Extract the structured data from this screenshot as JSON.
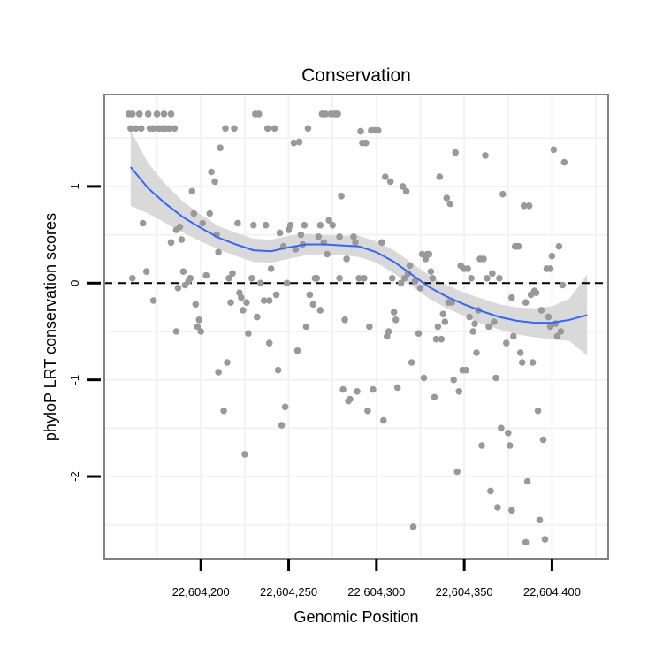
{
  "chart_data": {
    "type": "scatter",
    "title": "Conservation",
    "xlabel": "Genomic Position",
    "ylabel": "phyloP LRT conservation scores",
    "xlim": [
      22604145,
      22604432
    ],
    "ylim": [
      -2.85,
      1.95
    ],
    "x_ticks": [
      22604200,
      22604250,
      22604300,
      22604350,
      22604400
    ],
    "x_tick_labels": [
      "22,604,200",
      "22,604,250",
      "22,604,300",
      "22,604,350",
      "22,604,400"
    ],
    "y_ticks": [
      1,
      0,
      -1,
      -2
    ],
    "y_tick_labels": [
      "1",
      "0",
      "-1",
      "-2"
    ],
    "grid": true,
    "reference_line": {
      "y": 0,
      "style": "dashed"
    },
    "colors": {
      "points": "#999999",
      "smooth": "#3366ff",
      "ribbon": "#d9d9d9",
      "panel_border": "#808080",
      "grid": "#f2f2f2",
      "reference": "#000000"
    },
    "series": [
      {
        "values": [
          [
            22604159,
            1.75
          ],
          [
            22604160,
            1.6
          ],
          [
            22604161,
            1.75
          ],
          [
            22604161,
            0.05
          ],
          [
            22604163,
            1.6
          ],
          [
            22604165,
            1.75
          ],
          [
            22604166,
            1.6
          ],
          [
            22604167,
            0.62
          ],
          [
            22604169,
            0.12
          ],
          [
            22604170,
            1.75
          ],
          [
            22604171,
            1.6
          ],
          [
            22604173,
            1.6
          ],
          [
            22604173,
            -0.18
          ],
          [
            22604175,
            1.75
          ],
          [
            22604176,
            1.6
          ],
          [
            22604178,
            1.6
          ],
          [
            22604179,
            1.75
          ],
          [
            22604180,
            1.6
          ],
          [
            22604182,
            1.6
          ],
          [
            22604183,
            1.75
          ],
          [
            22604183,
            0.42
          ],
          [
            22604185,
            1.6
          ],
          [
            22604186,
            0.55
          ],
          [
            22604186,
            -0.5
          ],
          [
            22604187,
            -0.05
          ],
          [
            22604188,
            0.58
          ],
          [
            22604189,
            0.45
          ],
          [
            22604190,
            0.12
          ],
          [
            22604191,
            -0.02
          ],
          [
            22604193,
            0.02
          ],
          [
            22604194,
            0.05
          ],
          [
            22604195,
            0.95
          ],
          [
            22604196,
            0.72
          ],
          [
            22604197,
            -0.22
          ],
          [
            22604198,
            -0.45
          ],
          [
            22604199,
            -0.38
          ],
          [
            22604200,
            -0.5
          ],
          [
            22604201,
            0.62
          ],
          [
            22604203,
            0.08
          ],
          [
            22604205,
            0.72
          ],
          [
            22604206,
            1.15
          ],
          [
            22604208,
            1.05
          ],
          [
            22604209,
            0.5
          ],
          [
            22604210,
            -0.92
          ],
          [
            22604210,
            0.32
          ],
          [
            22604211,
            1.4
          ],
          [
            22604213,
            -1.32
          ],
          [
            22604214,
            1.6
          ],
          [
            22604215,
            -0.82
          ],
          [
            22604216,
            0.05
          ],
          [
            22604217,
            -0.2
          ],
          [
            22604218,
            0.1
          ],
          [
            22604219,
            1.6
          ],
          [
            22604221,
            0.62
          ],
          [
            22604222,
            -0.1
          ],
          [
            22604223,
            -0.15
          ],
          [
            22604224,
            -0.28
          ],
          [
            22604225,
            -1.77
          ],
          [
            22604226,
            -0.2
          ],
          [
            22604227,
            -0.52
          ],
          [
            22604229,
            0.05
          ],
          [
            22604230,
            0.6
          ],
          [
            22604231,
            1.75
          ],
          [
            22604232,
            -0.35
          ],
          [
            22604233,
            1.75
          ],
          [
            22604234,
            0.0
          ],
          [
            22604236,
            -0.18
          ],
          [
            22604237,
            0.6
          ],
          [
            22604238,
            1.6
          ],
          [
            22604239,
            -0.62
          ],
          [
            22604239,
            -0.18
          ],
          [
            22604240,
            0.15
          ],
          [
            22604242,
            1.6
          ],
          [
            22604243,
            -0.12
          ],
          [
            22604244,
            -0.9
          ],
          [
            22604245,
            0.52
          ],
          [
            22604246,
            -1.47
          ],
          [
            22604247,
            0.38
          ],
          [
            22604248,
            -1.28
          ],
          [
            22604249,
            0.0
          ],
          [
            22604250,
            0.55
          ],
          [
            22604251,
            0.6
          ],
          [
            22604253,
            1.45
          ],
          [
            22604254,
            0.35
          ],
          [
            22604255,
            -0.7
          ],
          [
            22604256,
            1.46
          ],
          [
            22604257,
            0.5
          ],
          [
            22604258,
            0.4
          ],
          [
            22604259,
            0.6
          ],
          [
            22604260,
            -0.45
          ],
          [
            22604261,
            1.6
          ],
          [
            22604262,
            -0.12
          ],
          [
            22604264,
            -0.22
          ],
          [
            22604265,
            0.05
          ],
          [
            22604266,
            0.05
          ],
          [
            22604267,
            0.48
          ],
          [
            22604268,
            0.6
          ],
          [
            22604268,
            -0.28
          ],
          [
            22604269,
            1.75
          ],
          [
            22604270,
            0.42
          ],
          [
            22604271,
            1.75
          ],
          [
            22604272,
            0.3
          ],
          [
            22604273,
            0.65
          ],
          [
            22604274,
            1.75
          ],
          [
            22604275,
            0.6
          ],
          [
            22604276,
            1.75
          ],
          [
            22604277,
            1.75
          ],
          [
            22604278,
            1.75
          ],
          [
            22604279,
            0.48
          ],
          [
            22604279,
            0.05
          ],
          [
            22604280,
            0.9
          ],
          [
            22604281,
            -1.1
          ],
          [
            22604282,
            -0.38
          ],
          [
            22604283,
            0.25
          ],
          [
            22604284,
            -1.22
          ],
          [
            22604285,
            -1.2
          ],
          [
            22604287,
            0.48
          ],
          [
            22604288,
            0.42
          ],
          [
            22604289,
            -1.12
          ],
          [
            22604290,
            0.05
          ],
          [
            22604291,
            1.57
          ],
          [
            22604292,
            1.45
          ],
          [
            22604293,
            0.05
          ],
          [
            22604294,
            1.45
          ],
          [
            22604295,
            -1.32
          ],
          [
            22604296,
            -0.45
          ],
          [
            22604297,
            1.58
          ],
          [
            22604298,
            -1.1
          ],
          [
            22604299,
            1.58
          ],
          [
            22604301,
            1.58
          ],
          [
            22604303,
            0.42
          ],
          [
            22604304,
            -1.42
          ],
          [
            22604305,
            1.1
          ],
          [
            22604306,
            -0.55
          ],
          [
            22604307,
            -0.5
          ],
          [
            22604308,
            1.05
          ],
          [
            22604309,
            0.05
          ],
          [
            22604310,
            -0.3
          ],
          [
            22604311,
            -0.38
          ],
          [
            22604312,
            -1.08
          ],
          [
            22604314,
            0.0
          ],
          [
            22604315,
            1.0
          ],
          [
            22604316,
            0.05
          ],
          [
            22604317,
            0.95
          ],
          [
            22604318,
            0.1
          ],
          [
            22604319,
            0.18
          ],
          [
            22604320,
            -0.82
          ],
          [
            22604321,
            -2.52
          ],
          [
            22604322,
            0.02
          ],
          [
            22604324,
            -0.52
          ],
          [
            22604325,
            -0.05
          ],
          [
            22604326,
            0.3
          ],
          [
            22604327,
            -0.98
          ],
          [
            22604328,
            0.25
          ],
          [
            22604329,
            0.3
          ],
          [
            22604330,
            0.3
          ],
          [
            22604331,
            0.12
          ],
          [
            22604332,
            0.05
          ],
          [
            22604333,
            -1.18
          ],
          [
            22604334,
            -0.58
          ],
          [
            22604335,
            -0.45
          ],
          [
            22604336,
            1.1
          ],
          [
            22604337,
            -0.58
          ],
          [
            22604338,
            -0.32
          ],
          [
            22604339,
            -0.4
          ],
          [
            22604340,
            0.88
          ],
          [
            22604341,
            -0.2
          ],
          [
            22604342,
            0.82
          ],
          [
            22604343,
            -0.2
          ],
          [
            22604344,
            -1.0
          ],
          [
            22604345,
            1.35
          ],
          [
            22604346,
            -1.95
          ],
          [
            22604347,
            -1.12
          ],
          [
            22604348,
            0.18
          ],
          [
            22604349,
            -0.9
          ],
          [
            22604350,
            0.15
          ],
          [
            22604351,
            -0.9
          ],
          [
            22604352,
            0.15
          ],
          [
            22604353,
            -0.35
          ],
          [
            22604354,
            0.05
          ],
          [
            22604355,
            -0.5
          ],
          [
            22604356,
            -0.42
          ],
          [
            22604357,
            -0.72
          ],
          [
            22604358,
            -0.28
          ],
          [
            22604359,
            0.25
          ],
          [
            22604360,
            -1.68
          ],
          [
            22604361,
            0.25
          ],
          [
            22604362,
            1.32
          ],
          [
            22604363,
            0.05
          ],
          [
            22604364,
            -0.45
          ],
          [
            22604365,
            -2.15
          ],
          [
            22604366,
            0.1
          ],
          [
            22604367,
            -0.4
          ],
          [
            22604368,
            -0.98
          ],
          [
            22604369,
            -2.32
          ],
          [
            22604370,
            0.05
          ],
          [
            22604371,
            -1.5
          ],
          [
            22604372,
            0.92
          ],
          [
            22604374,
            -0.62
          ],
          [
            22604375,
            -1.55
          ],
          [
            22604376,
            -1.68
          ],
          [
            22604377,
            -2.35
          ],
          [
            22604377,
            -0.15
          ],
          [
            22604378,
            -0.55
          ],
          [
            22604379,
            0.38
          ],
          [
            22604380,
            0.38
          ],
          [
            22604381,
            0.38
          ],
          [
            22604382,
            -0.72
          ],
          [
            22604383,
            -0.82
          ],
          [
            22604384,
            0.8
          ],
          [
            22604385,
            -2.68
          ],
          [
            22604385,
            -0.2
          ],
          [
            22604386,
            -2.05
          ],
          [
            22604387,
            0.8
          ],
          [
            22604388,
            -0.12
          ],
          [
            22604389,
            -0.82
          ],
          [
            22604390,
            -0.08
          ],
          [
            22604391,
            -0.1
          ],
          [
            22604392,
            -1.32
          ],
          [
            22604393,
            -2.45
          ],
          [
            22604394,
            -0.28
          ],
          [
            22604395,
            -1.62
          ],
          [
            22604396,
            -2.65
          ],
          [
            22604397,
            0.15
          ],
          [
            22604398,
            -0.35
          ],
          [
            22604399,
            0.15
          ],
          [
            22604399,
            -0.45
          ],
          [
            22604400,
            0.28
          ],
          [
            22604401,
            1.38
          ],
          [
            22604402,
            -0.42
          ],
          [
            22604403,
            -0.55
          ],
          [
            22604404,
            0.38
          ],
          [
            22604405,
            -0.5
          ],
          [
            22604406,
            -0.02
          ],
          [
            22604407,
            1.25
          ]
        ]
      }
    ],
    "smooth": {
      "x": [
        22604160,
        22604170,
        22604180,
        22604190,
        22604200,
        22604210,
        22604220,
        22604230,
        22604240,
        22604250,
        22604260,
        22604270,
        22604280,
        22604290,
        22604300,
        22604310,
        22604320,
        22604330,
        22604340,
        22604350,
        22604360,
        22604370,
        22604380,
        22604390,
        22604400,
        22604410,
        22604420
      ],
      "y": [
        1.2,
        0.98,
        0.82,
        0.68,
        0.57,
        0.47,
        0.4,
        0.34,
        0.33,
        0.37,
        0.4,
        0.4,
        0.39,
        0.38,
        0.32,
        0.22,
        0.09,
        -0.04,
        -0.14,
        -0.22,
        -0.29,
        -0.35,
        -0.39,
        -0.41,
        -0.41,
        -0.38,
        -0.33
      ],
      "lower": [
        0.8,
        0.72,
        0.62,
        0.52,
        0.43,
        0.35,
        0.28,
        0.22,
        0.21,
        0.25,
        0.29,
        0.3,
        0.29,
        0.27,
        0.21,
        0.1,
        -0.03,
        -0.16,
        -0.26,
        -0.34,
        -0.42,
        -0.48,
        -0.53,
        -0.56,
        -0.58,
        -0.6,
        -0.75
      ],
      "upper": [
        1.58,
        1.24,
        1.02,
        0.84,
        0.71,
        0.59,
        0.52,
        0.46,
        0.45,
        0.49,
        0.51,
        0.5,
        0.49,
        0.49,
        0.43,
        0.34,
        0.21,
        0.08,
        -0.02,
        -0.1,
        -0.16,
        -0.22,
        -0.25,
        -0.26,
        -0.24,
        -0.16,
        0.09
      ]
    }
  }
}
